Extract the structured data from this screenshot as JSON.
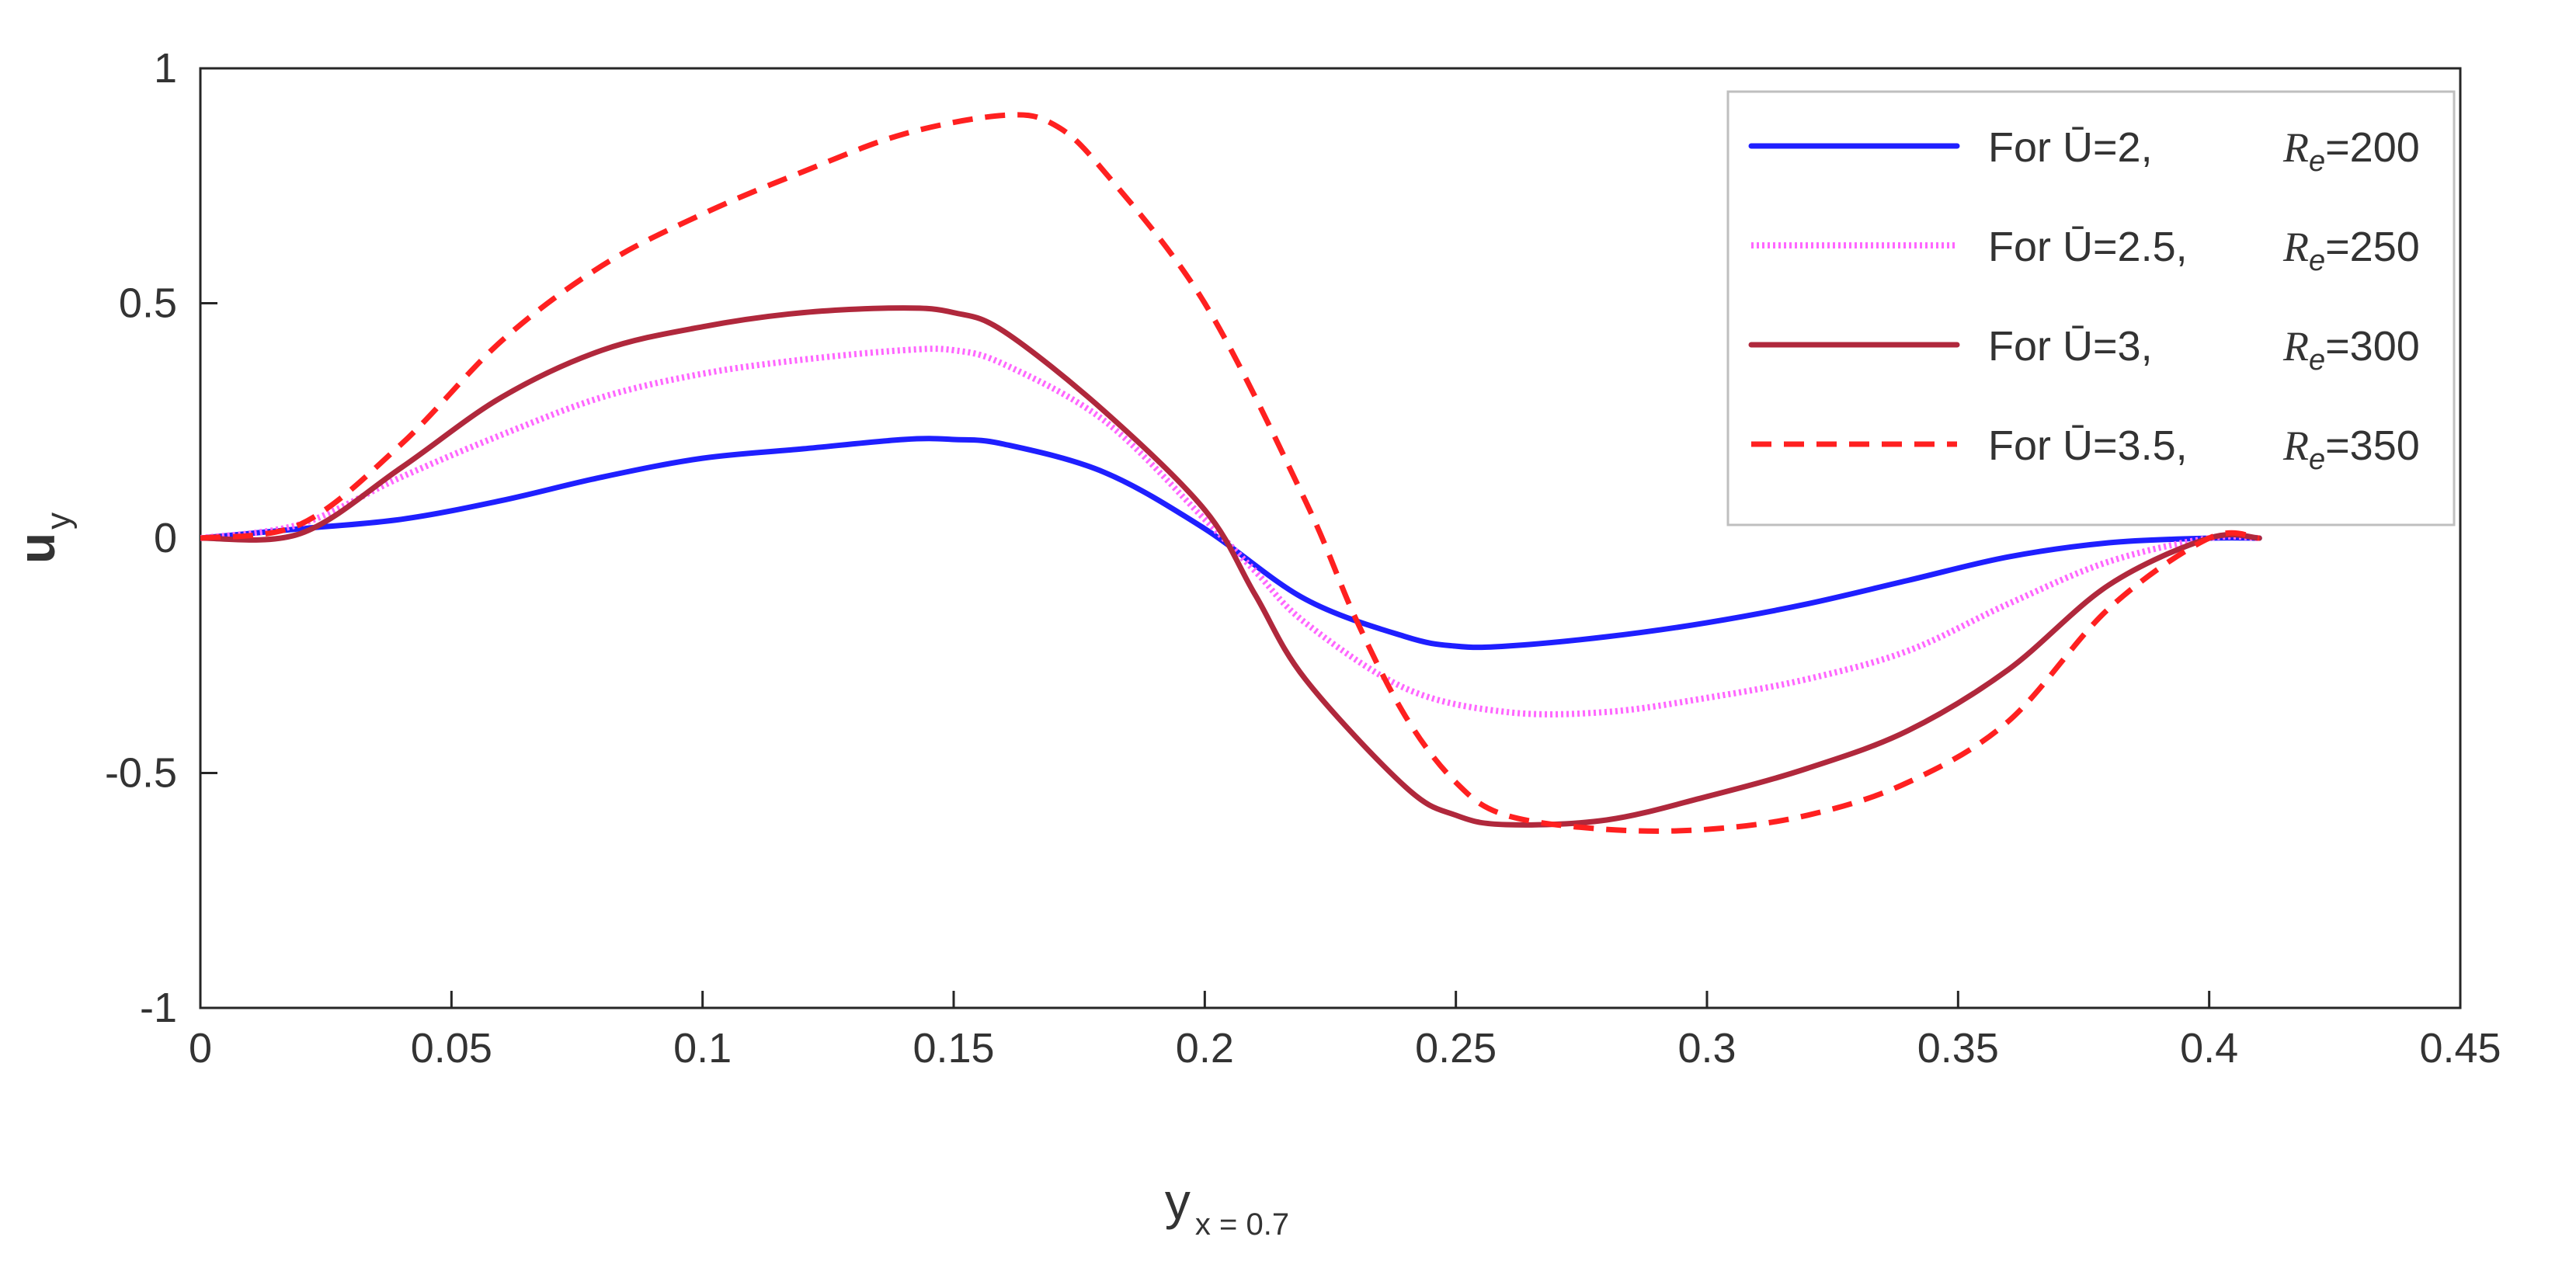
{
  "chart_data": {
    "type": "line",
    "title": "",
    "xlabel": "y",
    "xlabel_sub": "x = 0.7",
    "ylabel": "u",
    "ylabel_sub": "y",
    "xlim": [
      0,
      0.45
    ],
    "ylim": [
      -1,
      1
    ],
    "xticks": [
      0,
      0.05,
      0.1,
      0.15,
      0.2,
      0.25,
      0.3,
      0.35,
      0.4,
      0.45
    ],
    "xtick_labels": [
      "0",
      "0.05",
      "0.1",
      "0.15",
      "0.2",
      "0.25",
      "0.3",
      "0.35",
      "0.4",
      "0.45"
    ],
    "yticks": [
      -1,
      -0.5,
      0,
      0.5,
      1
    ],
    "ytick_labels": [
      "-1",
      "-0.5",
      "0",
      "0.5",
      "1"
    ],
    "grid": false,
    "legend_position": "top-right",
    "series": [
      {
        "name": "For Ū=2,      Re=200",
        "legend": {
          "prefix": "For Ū=2,",
          "re_symbol": "R",
          "re_sub": "e",
          "re_value": "=200"
        },
        "color": "#1f1fff",
        "style": "solid",
        "x": [
          0,
          0.02,
          0.04,
          0.06,
          0.08,
          0.1,
          0.12,
          0.14,
          0.15,
          0.16,
          0.18,
          0.2,
          0.22,
          0.24,
          0.25,
          0.26,
          0.28,
          0.3,
          0.32,
          0.34,
          0.36,
          0.38,
          0.4,
          0.41
        ],
        "y": [
          0,
          0.02,
          0.04,
          0.08,
          0.13,
          0.17,
          0.19,
          0.21,
          0.21,
          0.2,
          0.14,
          0.02,
          -0.13,
          -0.21,
          -0.23,
          -0.23,
          -0.21,
          -0.18,
          -0.14,
          -0.09,
          -0.04,
          -0.01,
          0,
          0
        ]
      },
      {
        "name": "For Ū=2.5,  Re=250",
        "legend": {
          "prefix": "For Ū=2.5,",
          "re_symbol": "R",
          "re_sub": "e",
          "re_value": "=250"
        },
        "color": "#ff66ff",
        "style": "dotted",
        "x": [
          0,
          0.02,
          0.04,
          0.06,
          0.08,
          0.1,
          0.12,
          0.14,
          0.15,
          0.16,
          0.18,
          0.2,
          0.21,
          0.22,
          0.24,
          0.26,
          0.28,
          0.3,
          0.32,
          0.34,
          0.36,
          0.38,
          0.4,
          0.41
        ],
        "y": [
          0,
          0.03,
          0.13,
          0.22,
          0.3,
          0.35,
          0.38,
          0.4,
          0.4,
          0.37,
          0.25,
          0.04,
          -0.07,
          -0.18,
          -0.32,
          -0.37,
          -0.37,
          -0.34,
          -0.3,
          -0.24,
          -0.14,
          -0.05,
          0,
          0
        ]
      },
      {
        "name": "For Ū=3,      Re=300",
        "legend": {
          "prefix": "For Ū=3,",
          "re_symbol": "R",
          "re_sub": "e",
          "re_value": "=300"
        },
        "color": "#b0283c",
        "style": "solid",
        "x": [
          0,
          0.02,
          0.04,
          0.06,
          0.08,
          0.1,
          0.12,
          0.14,
          0.15,
          0.16,
          0.18,
          0.2,
          0.21,
          0.22,
          0.24,
          0.25,
          0.26,
          0.28,
          0.3,
          0.32,
          0.34,
          0.36,
          0.38,
          0.4,
          0.41
        ],
        "y": [
          0,
          0.01,
          0.15,
          0.3,
          0.4,
          0.45,
          0.48,
          0.49,
          0.48,
          0.44,
          0.27,
          0.06,
          -0.12,
          -0.3,
          -0.53,
          -0.59,
          -0.61,
          -0.6,
          -0.55,
          -0.49,
          -0.41,
          -0.28,
          -0.1,
          0,
          0
        ]
      },
      {
        "name": "For Ū=3.5,  Re=350",
        "legend": {
          "prefix": "For Ū=3.5,",
          "re_symbol": "R",
          "re_sub": "e",
          "re_value": "=350"
        },
        "color": "#ff2020",
        "style": "dashed",
        "x": [
          0,
          0.02,
          0.04,
          0.06,
          0.08,
          0.1,
          0.12,
          0.14,
          0.16,
          0.17,
          0.18,
          0.2,
          0.22,
          0.23,
          0.24,
          0.25,
          0.26,
          0.28,
          0.3,
          0.32,
          0.34,
          0.36,
          0.38,
          0.4,
          0.41
        ],
        "y": [
          0,
          0.03,
          0.2,
          0.42,
          0.58,
          0.69,
          0.78,
          0.86,
          0.9,
          0.88,
          0.78,
          0.5,
          0.08,
          -0.17,
          -0.38,
          -0.52,
          -0.59,
          -0.62,
          -0.62,
          -0.59,
          -0.52,
          -0.39,
          -0.15,
          0,
          0
        ]
      }
    ]
  }
}
